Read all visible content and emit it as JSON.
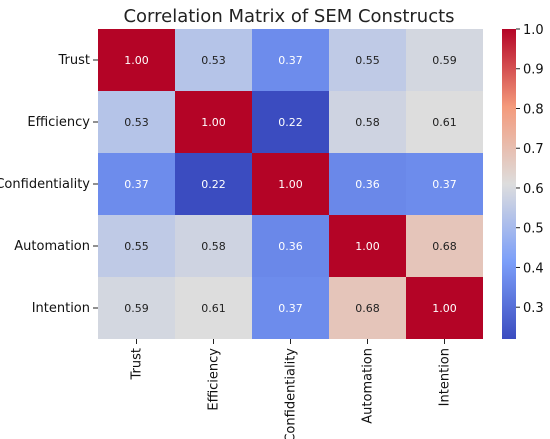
{
  "chart_data": {
    "type": "heatmap",
    "title": "Correlation Matrix of SEM Constructs",
    "row_labels": [
      "Trust",
      "Efficiency",
      "Confidentiality",
      "Automation",
      "Intention"
    ],
    "col_labels": [
      "Trust",
      "Efficiency",
      "Confidentiality",
      "Automation",
      "Intention"
    ],
    "values": [
      [
        1.0,
        0.53,
        0.37,
        0.55,
        0.59
      ],
      [
        0.53,
        1.0,
        0.22,
        0.58,
        0.61
      ],
      [
        0.37,
        0.22,
        1.0,
        0.36,
        0.37
      ],
      [
        0.55,
        0.58,
        0.36,
        1.0,
        0.68
      ],
      [
        0.59,
        0.61,
        0.37,
        0.68,
        1.0
      ]
    ],
    "value_format": "0.00",
    "colormap": "coolwarm",
    "colorbar": {
      "range": [
        0.22,
        1.0
      ],
      "ticks": [
        "0.3",
        "0.4",
        "0.5",
        "0.6",
        "0.7",
        "0.8",
        "0.9",
        "1.0"
      ],
      "tick_values": [
        0.3,
        0.4,
        0.5,
        0.6,
        0.7,
        0.8,
        0.9,
        1.0
      ]
    }
  }
}
